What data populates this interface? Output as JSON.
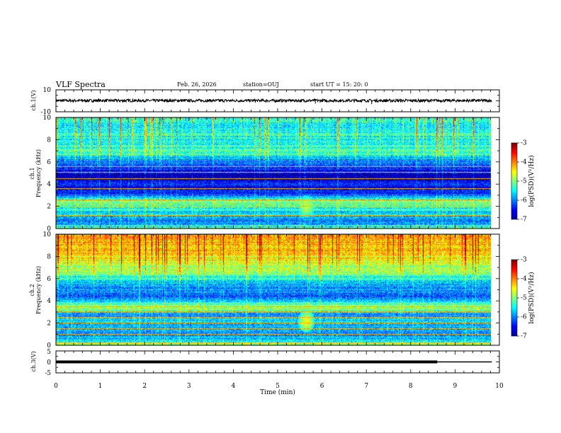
{
  "header": {
    "title": "VLF Spectra",
    "date": "Feb. 26, 2026",
    "station": "station=OUJ",
    "start": "start  UT =   15: 20: 0"
  },
  "chart_data": [
    {
      "type": "line",
      "name": "ch1-waveform",
      "ylabel": "ch.1(V)",
      "ylim": [
        -10,
        10
      ],
      "yticks": [
        "10",
        "-10"
      ],
      "xlim": [
        0,
        9.83
      ],
      "mean": 0.2,
      "noise_amplitude": 1.3,
      "spikes": [
        {
          "t": 5.85,
          "v": -2.5
        },
        {
          "t": 7.12,
          "v": -3.0
        }
      ]
    },
    {
      "type": "heatmap",
      "name": "ch1-spectrogram",
      "ylabel": [
        "ch.1",
        "Frequency (kHz)"
      ],
      "ylim": [
        0,
        10
      ],
      "yticks": [
        "0",
        "2",
        "4",
        "6",
        "8",
        "10"
      ],
      "xlim": [
        0,
        9.83
      ],
      "colorbar": {
        "label": "log(PSD)(V²/Hz)",
        "range": [
          -7,
          -3
        ],
        "ticks": [
          "-3",
          "-4",
          "-5",
          "-6",
          "-7"
        ]
      },
      "base_level": -6.1,
      "profile": [
        [
          0,
          -5.2
        ],
        [
          0.5,
          -6.0
        ],
        [
          1.5,
          -5.6
        ],
        [
          2.4,
          -5.0
        ],
        [
          3.0,
          -6.1
        ],
        [
          3.6,
          -6.6
        ],
        [
          4.0,
          -6.4
        ],
        [
          4.6,
          -6.9
        ],
        [
          5.2,
          -6.5
        ],
        [
          6.0,
          -6.0
        ],
        [
          6.8,
          -5.2
        ],
        [
          7.5,
          -5.3
        ],
        [
          8.5,
          -5.4
        ],
        [
          10,
          -5.4
        ]
      ],
      "lines": [
        0.2,
        1.15,
        2.0,
        2.55,
        3.6,
        4.5,
        5.05,
        5.55
      ],
      "blob": {
        "t": 5.65,
        "f": 2.0,
        "level": -4.8
      }
    },
    {
      "type": "heatmap",
      "name": "ch2-spectrogram",
      "ylabel": [
        "ch.2",
        "Frequency (kHz)"
      ],
      "ylim": [
        0,
        10
      ],
      "yticks": [
        "0",
        "2",
        "4",
        "6",
        "8",
        "10"
      ],
      "xlim": [
        0,
        9.83
      ],
      "colorbar": {
        "label": "log(PSD)(V²/Hz)",
        "range": [
          -7,
          -3
        ],
        "ticks": [
          "-3",
          "-4",
          "-5",
          "-6",
          "-7"
        ]
      },
      "base_level": -5.4,
      "profile": [
        [
          0,
          -4.7
        ],
        [
          0.4,
          -5.6
        ],
        [
          1.0,
          -5.9
        ],
        [
          2.0,
          -5.6
        ],
        [
          2.8,
          -5.9
        ],
        [
          3.3,
          -5.0
        ],
        [
          3.7,
          -5.1
        ],
        [
          4.2,
          -6.1
        ],
        [
          5.5,
          -5.8
        ],
        [
          6.5,
          -5.0
        ],
        [
          7.5,
          -4.6
        ],
        [
          8.5,
          -4.3
        ],
        [
          10,
          -4.2
        ]
      ],
      "lines": [
        0.2,
        0.95,
        1.5,
        2.0,
        2.5,
        3.0,
        3.45
      ],
      "blob": {
        "t": 5.65,
        "f": 2.2,
        "level": -4.6
      }
    },
    {
      "type": "line",
      "name": "ch3-trace",
      "ylabel": "ch.3(V)",
      "ylim": [
        -5,
        5
      ],
      "yticks": [
        "5",
        "0",
        "-5"
      ],
      "xlim": [
        0,
        9.83
      ],
      "value": 0.0,
      "thick_until": 8.6
    }
  ],
  "xaxis": {
    "label": "Time  (min)",
    "range": [
      0,
      10
    ],
    "ticks": [
      "0",
      "1",
      "2",
      "3",
      "4",
      "5",
      "6",
      "7",
      "8",
      "9",
      "10"
    ]
  }
}
